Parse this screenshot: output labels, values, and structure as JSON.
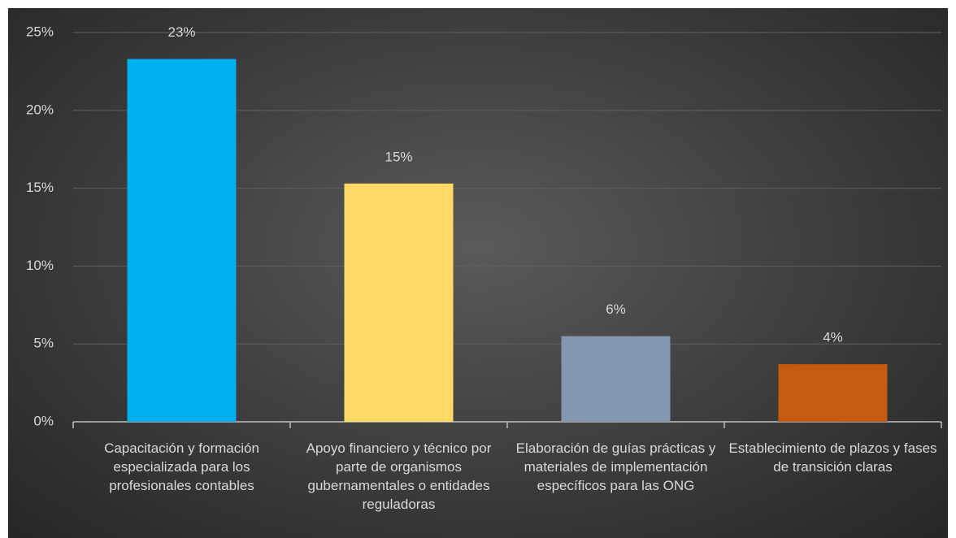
{
  "chart_data": {
    "type": "bar",
    "categories": [
      "Capacitación y formación especializada para los profesionales contables",
      "Apoyo financiero y técnico por parte de organismos gubernamentales o entidades reguladoras",
      "Elaboración de guías prácticas y materiales de implementación específicos para las ONG",
      "Establecimiento de plazos y fases de transición claras"
    ],
    "values": [
      23.3,
      15.3,
      5.5,
      3.7
    ],
    "value_labels": [
      "23%",
      "15%",
      "6%",
      "4%"
    ],
    "colors": [
      "#00b0f0",
      "#ffd966",
      "#8497b0",
      "#c55a11"
    ],
    "ylim": [
      0,
      25
    ],
    "yticks": [
      {
        "value": 0,
        "label": "0%"
      },
      {
        "value": 5,
        "label": "5%"
      },
      {
        "value": 10,
        "label": "10%"
      },
      {
        "value": 15,
        "label": "15%"
      },
      {
        "value": 20,
        "label": "20%"
      },
      {
        "value": 25,
        "label": "25%"
      }
    ],
    "grid": true
  }
}
